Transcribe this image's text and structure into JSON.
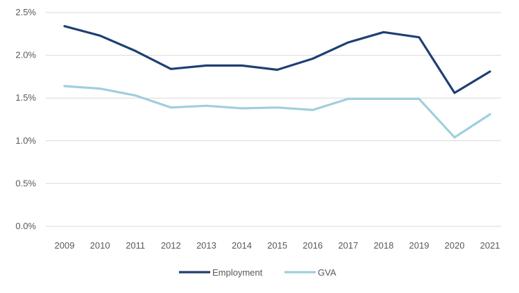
{
  "chart_data": {
    "type": "line",
    "title": "",
    "xlabel": "",
    "ylabel": "",
    "categories": [
      "2009",
      "2010",
      "2011",
      "2012",
      "2013",
      "2014",
      "2015",
      "2016",
      "2017",
      "2018",
      "2019",
      "2020",
      "2021"
    ],
    "ylim": [
      0,
      2.5
    ],
    "yticks": [
      0,
      0.5,
      1.0,
      1.5,
      2.0,
      2.5
    ],
    "ytick_labels": [
      "0.0%",
      "0.5%",
      "1.0%",
      "1.5%",
      "2.0%",
      "2.5%"
    ],
    "grid": true,
    "legend_position": "bottom",
    "series": [
      {
        "name": "Employment",
        "color": "#1f3f73",
        "values": [
          2.34,
          2.23,
          2.05,
          1.84,
          1.88,
          1.88,
          1.83,
          1.96,
          2.15,
          2.27,
          2.21,
          1.56,
          1.81
        ]
      },
      {
        "name": "GVA",
        "color": "#9fcfdc",
        "values": [
          1.64,
          1.61,
          1.53,
          1.39,
          1.41,
          1.38,
          1.39,
          1.36,
          1.49,
          1.49,
          1.49,
          1.04,
          1.31
        ]
      }
    ]
  }
}
